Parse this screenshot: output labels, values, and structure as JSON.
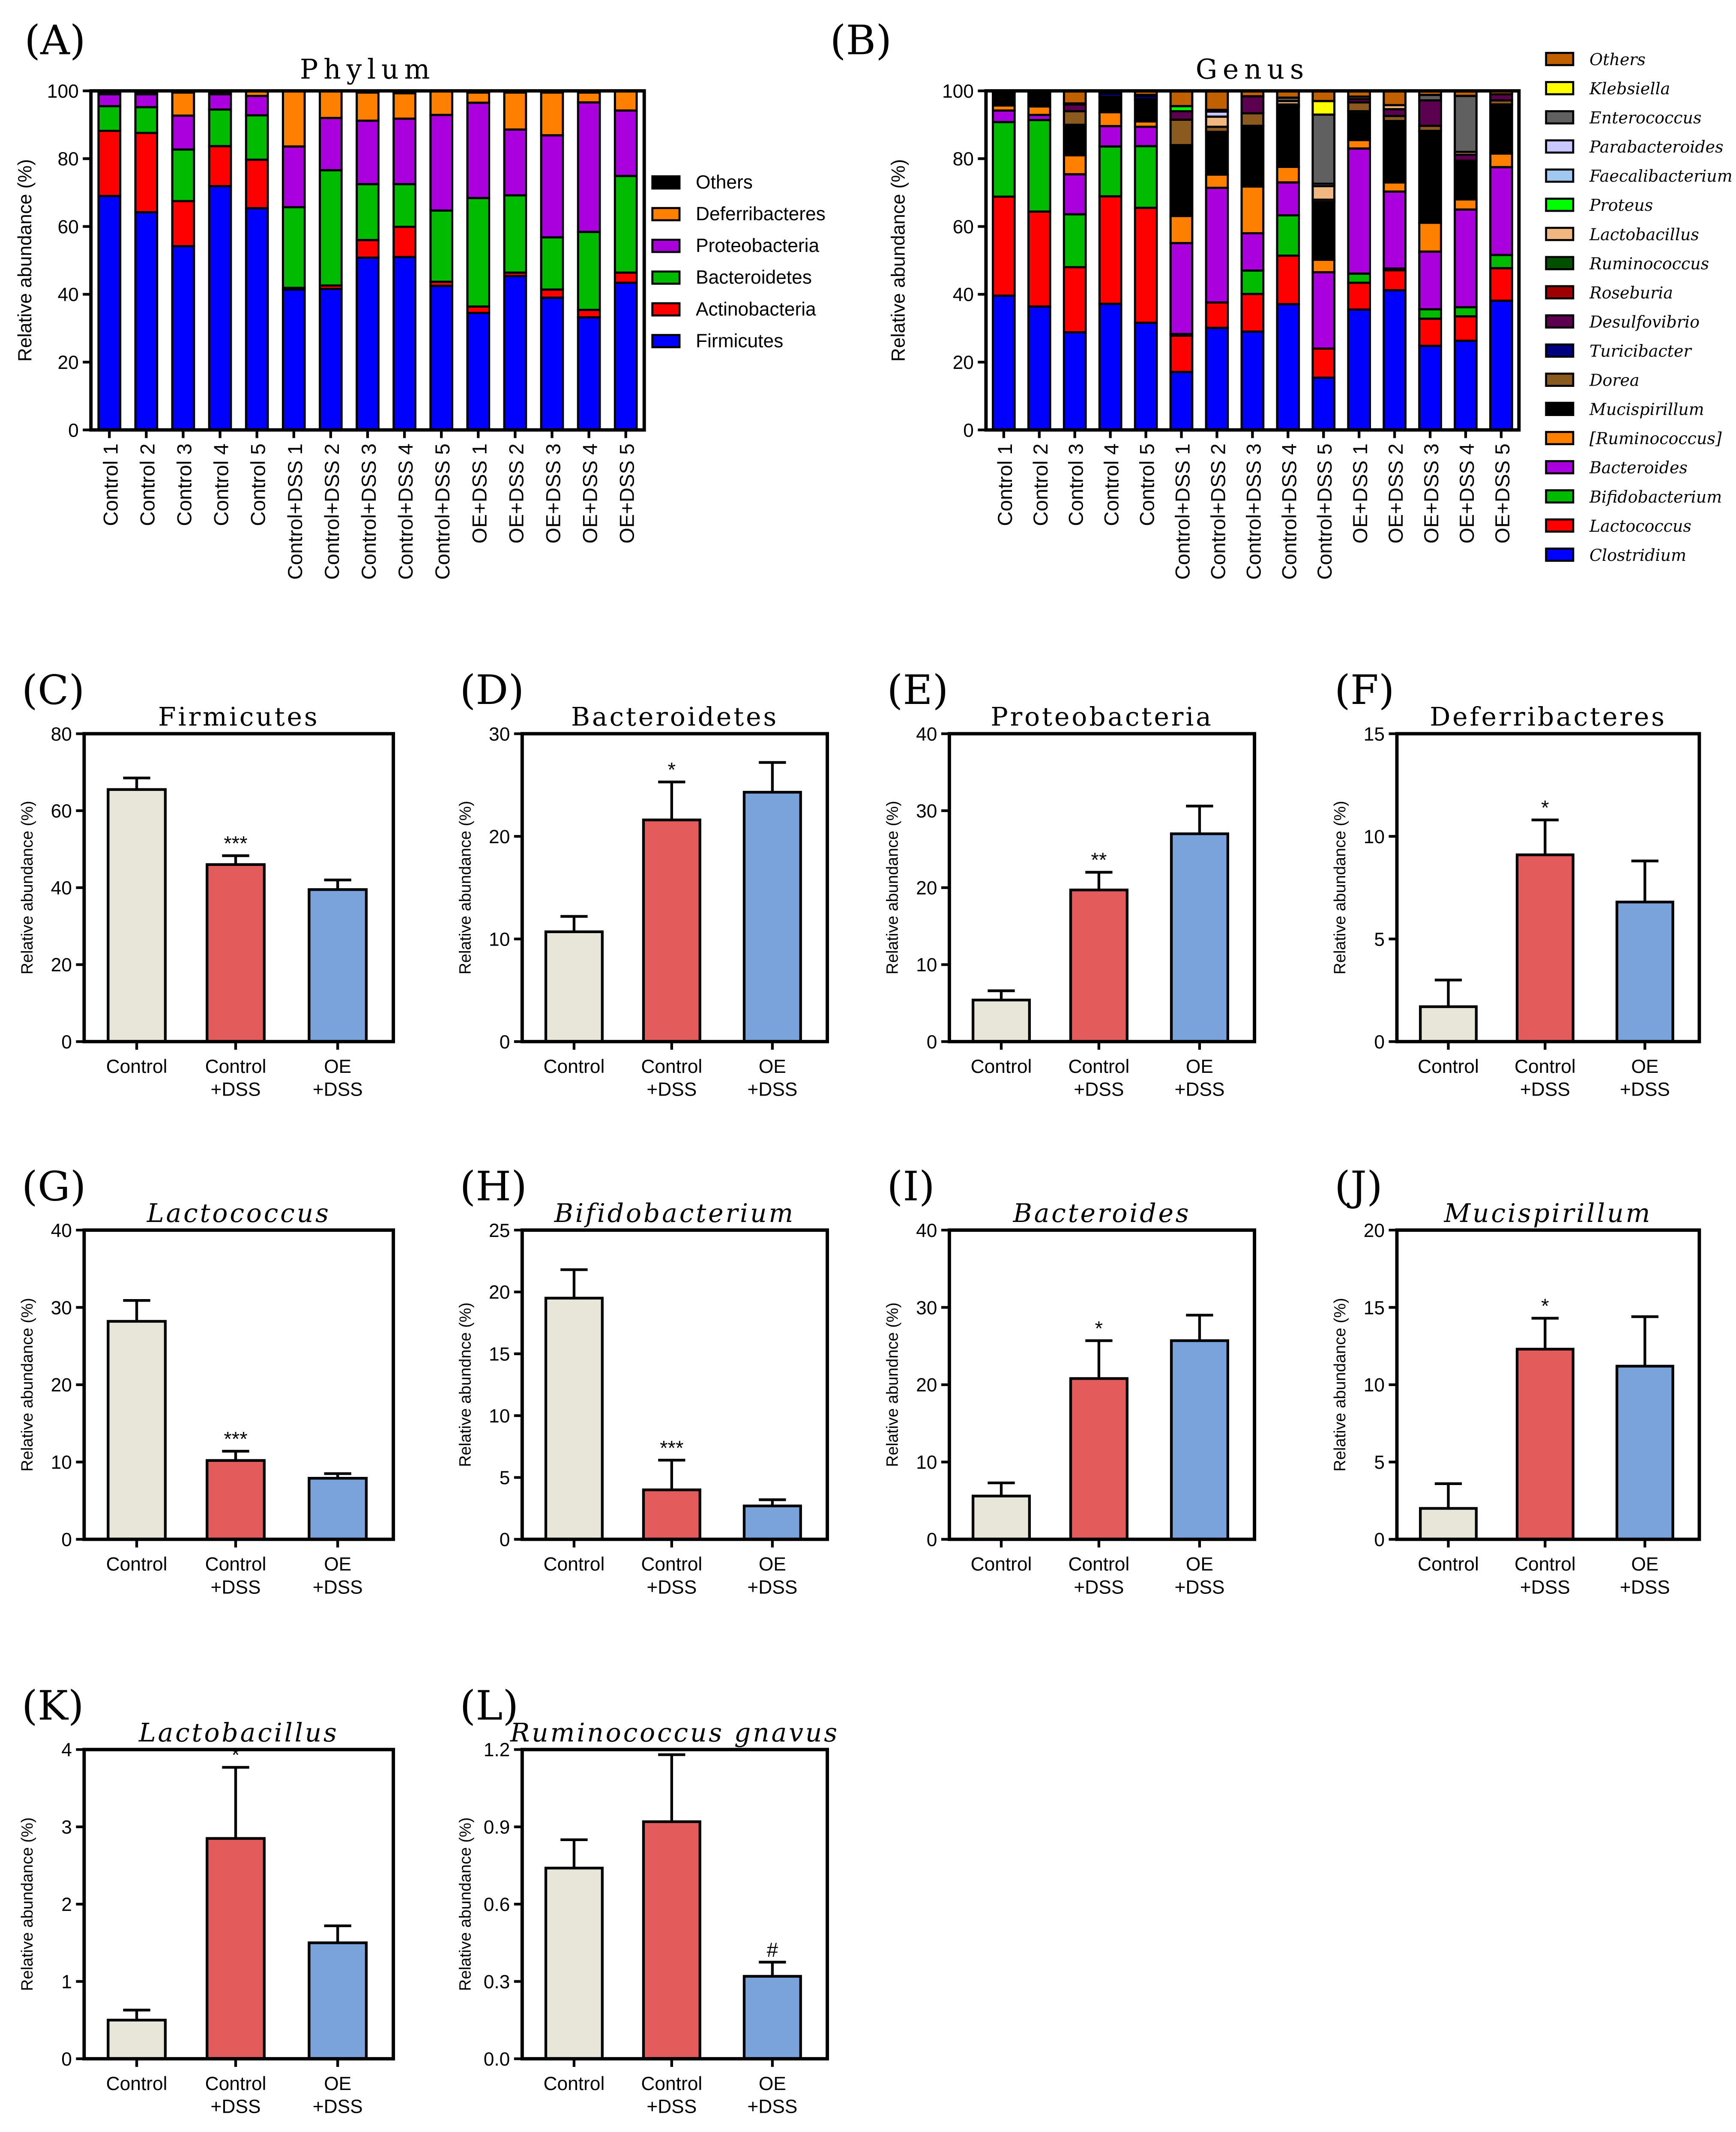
{
  "colors": {
    "control": "#e8e6d8",
    "control_dss": "#e35b5b",
    "oe_dss": "#7aa3dc"
  },
  "chart_data": [
    {
      "panel": "(A)",
      "type": "bar",
      "stacked": true,
      "title": "Phylum",
      "ylabel": "Relative abundance (%)",
      "ylim": [
        0,
        100
      ],
      "yticks": [
        0,
        20,
        40,
        60,
        80,
        100
      ],
      "categories": [
        "Control 1",
        "Control 2",
        "Control 3",
        "Control 4",
        "Control 5",
        "Control+DSS 1",
        "Control+DSS 2",
        "Control+DSS 3",
        "Control+DSS 4",
        "Control+DSS 5",
        "OE+DSS 1",
        "OE+DSS 2",
        "OE+DSS 3",
        "OE+DSS 4",
        "OE+DSS 5"
      ],
      "legend_position": "right",
      "series": [
        {
          "name": "Firmicutes",
          "color": "#0000ff",
          "values": [
            69,
            64.2,
            54.2,
            71.9,
            65.4,
            41.4,
            41.6,
            50.8,
            51,
            42.5,
            34.5,
            45.4,
            39,
            33.2,
            43.4
          ]
        },
        {
          "name": "Actinobacteria",
          "color": "#ff0000",
          "values": [
            19.2,
            23.4,
            13.3,
            11.8,
            14.3,
            0.5,
            1,
            5.2,
            8.9,
            1.2,
            1.9,
            1,
            2.4,
            2.2,
            3
          ]
        },
        {
          "name": "Bacteroidetes",
          "color": "#00bb00",
          "values": [
            7.3,
            7.6,
            15.2,
            10.8,
            13.1,
            23.8,
            34,
            16.5,
            12.6,
            21,
            32,
            22.8,
            15.4,
            23,
            28.5
          ]
        },
        {
          "name": "Proteobacteria",
          "color": "#aa00dd",
          "values": [
            3.5,
            3.8,
            10,
            4.5,
            5.7,
            17.9,
            15.4,
            18.7,
            19.3,
            28.2,
            28.1,
            19.4,
            30.1,
            38.2,
            19.3
          ]
        },
        {
          "name": "Deferribacteres",
          "color": "#ff8000",
          "values": [
            0,
            0,
            6.8,
            0,
            1.5,
            16.4,
            8,
            8.3,
            7.5,
            7.1,
            3,
            10.9,
            12.6,
            2.9,
            5.8
          ]
        },
        {
          "name": "Others",
          "color": "#000000",
          "values": [
            1,
            1,
            0.5,
            1,
            0,
            0,
            0,
            0.5,
            0.7,
            0,
            0.5,
            0.5,
            0.5,
            0.5,
            0
          ]
        }
      ]
    },
    {
      "panel": "(B)",
      "type": "bar",
      "stacked": true,
      "title": "Genus",
      "ylabel": "Relative abundance (%)",
      "ylim": [
        0,
        100
      ],
      "yticks": [
        0,
        20,
        40,
        60,
        80,
        100
      ],
      "categories": [
        "Control 1",
        "Control 2",
        "Control 3",
        "Control 4",
        "Control 5",
        "Control+DSS 1",
        "Control+DSS 2",
        "Control+DSS 3",
        "Control+DSS 4",
        "Control+DSS 5",
        "OE+DSS 1",
        "OE+DSS 2",
        "OE+DSS 3",
        "OE+DSS 4",
        "OE+DSS 5"
      ],
      "legend_position": "right",
      "series": [
        {
          "name": "Clostridium",
          "color": "#0000ff",
          "values": [
            39.6,
            36.4,
            28.8,
            37.2,
            31.6,
            17.1,
            30.1,
            29,
            37.1,
            15.4,
            35.5,
            41.2,
            24.8,
            26.3,
            38.1
          ]
        },
        {
          "name": "Lactococcus",
          "color": "#ff0000",
          "values": [
            29.2,
            28,
            19.2,
            31.7,
            33.9,
            10.7,
            7.5,
            11.1,
            14.3,
            8.6,
            7.9,
            5.9,
            8,
            7.2,
            9.6
          ]
        },
        {
          "name": "Bifidobacterium",
          "color": "#00bb00",
          "values": [
            22,
            27,
            15.6,
            14.7,
            18.2,
            0.5,
            0,
            6.9,
            11.9,
            0,
            2.7,
            0.5,
            2.8,
            2.7,
            3.9
          ]
        },
        {
          "name": "Bacteroides",
          "color": "#aa00dd",
          "values": [
            3.4,
            1.5,
            11.8,
            6,
            5.7,
            26.8,
            33.8,
            11,
            9.7,
            22.5,
            36.9,
            22.7,
            17,
            28.8,
            25.9
          ]
        },
        {
          "name": "[Ruminococcus]",
          "color": "#ff8000",
          "values": [
            1.5,
            2.5,
            5.6,
            4.1,
            1.6,
            8,
            3.9,
            13.8,
            4.6,
            3.7,
            2.5,
            2.7,
            8.5,
            3,
            4
          ]
        },
        {
          "name": "Mucispirillum",
          "color": "#000000",
          "values": [
            3.8,
            4.1,
            9,
            4.5,
            6.5,
            20.9,
            12.6,
            17.9,
            17.7,
            17,
            8.5,
            18.1,
            27.1,
            11.4,
            14.5
          ]
        },
        {
          "name": "Dorea",
          "color": "#8b5a1e",
          "values": [
            0,
            0,
            4,
            0,
            0,
            7.5,
            1.5,
            3.7,
            0.4,
            0.7,
            2.6,
            1.5,
            1.5,
            0,
            1.2
          ]
        },
        {
          "name": "Turicibacter",
          "color": "#000080",
          "values": [
            0,
            0,
            0,
            1,
            1,
            0,
            0,
            0,
            0,
            0,
            0,
            0,
            0,
            0,
            0
          ]
        },
        {
          "name": "Desulfovibrio",
          "color": "#5c0050",
          "values": [
            0,
            0,
            2,
            0,
            0,
            2.5,
            0,
            5,
            0,
            0,
            1,
            2,
            7.5,
            1.8,
            1.8
          ]
        },
        {
          "name": "Roseburia",
          "color": "#a00000",
          "values": [
            0,
            0,
            0,
            0,
            0.3,
            0,
            0,
            0,
            0,
            0,
            0,
            0,
            0,
            0,
            0
          ]
        },
        {
          "name": "Ruminococcus",
          "color": "#005000",
          "values": [
            0,
            0,
            0.3,
            0,
            0,
            0,
            0,
            0,
            0.3,
            0,
            0,
            0,
            0,
            0,
            0
          ]
        },
        {
          "name": "Lactobacillus",
          "color": "#f0b880",
          "values": [
            0,
            0,
            0,
            0,
            0,
            0,
            3,
            0,
            1,
            4,
            0.7,
            1.2,
            0,
            0.8,
            0
          ]
        },
        {
          "name": "Proteus",
          "color": "#00ff00",
          "values": [
            0,
            0,
            0,
            0,
            0,
            1.5,
            0,
            0,
            0,
            0,
            0,
            0,
            0,
            0,
            0
          ]
        },
        {
          "name": "Faecalibacterium",
          "color": "#a0c8f0",
          "values": [
            0,
            0,
            0,
            0,
            0,
            0,
            0,
            0,
            0,
            0,
            0,
            0,
            0,
            0,
            0
          ]
        },
        {
          "name": "Parabacteroides",
          "color": "#c8c8ff",
          "values": [
            0,
            0,
            0,
            0,
            0,
            0,
            1.5,
            0,
            0,
            0.7,
            0,
            0,
            0,
            0,
            0
          ]
        },
        {
          "name": "Enterococcus",
          "color": "#606060",
          "values": [
            0,
            0,
            0,
            0,
            0,
            0,
            0.5,
            0,
            1,
            20.4,
            0,
            0,
            1.6,
            16.5,
            0
          ]
        },
        {
          "name": "Klebsiella",
          "color": "#ffff00",
          "values": [
            0,
            0,
            0,
            0,
            0,
            0,
            0,
            0,
            0,
            4,
            0,
            0,
            0,
            0,
            0
          ]
        },
        {
          "name": "Others",
          "color": "#c06000",
          "values": [
            0.5,
            0.5,
            3.7,
            0.8,
            1.2,
            4.5,
            5.6,
            1.6,
            2,
            3,
            1.7,
            4.2,
            1.2,
            1.5,
            1
          ]
        }
      ]
    },
    {
      "panel": "(C)",
      "type": "bar",
      "title": "Firmicutes",
      "italic": false,
      "ylabel": "Relative abundance (%)",
      "ylim": [
        0,
        80
      ],
      "yticks": [
        0,
        20,
        40,
        60,
        80
      ],
      "categories": [
        [
          "Control"
        ],
        [
          "Control",
          "+DSS"
        ],
        [
          "OE",
          "+DSS"
        ]
      ],
      "values": [
        65.5,
        46,
        39.5
      ],
      "errors": [
        3,
        2.3,
        2.5
      ],
      "annotations": [
        "",
        "***",
        ""
      ]
    },
    {
      "panel": "(D)",
      "type": "bar",
      "title": "Bacteroidetes",
      "italic": false,
      "ylabel": "Relative abundance (%)",
      "ylim": [
        0,
        30
      ],
      "yticks": [
        0,
        10,
        20,
        30
      ],
      "categories": [
        [
          "Control"
        ],
        [
          "Control",
          "+DSS"
        ],
        [
          "OE",
          "+DSS"
        ]
      ],
      "values": [
        10.7,
        21.6,
        24.3
      ],
      "errors": [
        1.5,
        3.7,
        2.9
      ],
      "annotations": [
        "",
        "*",
        ""
      ]
    },
    {
      "panel": "(E)",
      "type": "bar",
      "title": "Proteobacteria",
      "italic": false,
      "ylabel": "Relative abundance (%)",
      "ylim": [
        0,
        40
      ],
      "yticks": [
        0,
        10,
        20,
        30,
        40
      ],
      "categories": [
        [
          "Control"
        ],
        [
          "Control",
          "+DSS"
        ],
        [
          "OE",
          "+DSS"
        ]
      ],
      "values": [
        5.4,
        19.7,
        27
      ],
      "errors": [
        1.2,
        2.3,
        3.6
      ],
      "annotations": [
        "",
        "**",
        ""
      ]
    },
    {
      "panel": "(F)",
      "type": "bar",
      "title": "Deferribacteres",
      "italic": false,
      "ylabel": "Relative abundance (%)",
      "ylim": [
        0,
        15
      ],
      "yticks": [
        0,
        5,
        10,
        15
      ],
      "categories": [
        [
          "Control"
        ],
        [
          "Control",
          "+DSS"
        ],
        [
          "OE",
          "+DSS"
        ]
      ],
      "values": [
        1.7,
        9.1,
        6.8
      ],
      "errors": [
        1.3,
        1.7,
        2
      ],
      "annotations": [
        "",
        "*",
        ""
      ]
    },
    {
      "panel": "(G)",
      "type": "bar",
      "title": "Lactococcus",
      "italic": true,
      "ylabel": "Relative abundance (%)",
      "ylim": [
        0,
        40
      ],
      "yticks": [
        0,
        10,
        20,
        30,
        40
      ],
      "categories": [
        [
          "Control"
        ],
        [
          "Control",
          "+DSS"
        ],
        [
          "OE",
          "+DSS"
        ]
      ],
      "values": [
        28.2,
        10.2,
        7.9
      ],
      "errors": [
        2.7,
        1.2,
        0.6
      ],
      "annotations": [
        "",
        "***",
        ""
      ]
    },
    {
      "panel": "(H)",
      "type": "bar",
      "title": "Bifidobacterium",
      "italic": true,
      "ylabel": "Relative abundnce  (%)",
      "ylim": [
        0,
        25
      ],
      "yticks": [
        0,
        5,
        10,
        15,
        20,
        25
      ],
      "categories": [
        [
          "Control"
        ],
        [
          "Control",
          "+DSS"
        ],
        [
          "OE",
          "+DSS"
        ]
      ],
      "values": [
        19.5,
        4,
        2.7
      ],
      "errors": [
        2.3,
        2.4,
        0.5
      ],
      "annotations": [
        "",
        "***",
        ""
      ]
    },
    {
      "panel": "(I)",
      "type": "bar",
      "title": "Bacteroides",
      "italic": true,
      "ylabel": "Relative abundnce  (%)",
      "ylim": [
        0,
        40
      ],
      "yticks": [
        0,
        10,
        20,
        30,
        40
      ],
      "categories": [
        [
          "Control"
        ],
        [
          "Control",
          "+DSS"
        ],
        [
          "OE",
          "+DSS"
        ]
      ],
      "values": [
        5.6,
        20.8,
        25.7
      ],
      "errors": [
        1.7,
        4.9,
        3.3
      ],
      "annotations": [
        "",
        "*",
        ""
      ]
    },
    {
      "panel": "(J)",
      "type": "bar",
      "title": "Mucispirillum",
      "italic": true,
      "ylabel": "Relative abundance (%)",
      "ylim": [
        0,
        20
      ],
      "yticks": [
        0,
        5,
        10,
        15,
        20
      ],
      "categories": [
        [
          "Control"
        ],
        [
          "Control",
          "+DSS"
        ],
        [
          "OE",
          "+DSS"
        ]
      ],
      "values": [
        2,
        12.3,
        11.2
      ],
      "errors": [
        1.6,
        2,
        3.2
      ],
      "annotations": [
        "",
        "*",
        ""
      ]
    },
    {
      "panel": "(K)",
      "type": "bar",
      "title": "Lactobacillus",
      "italic": true,
      "ylabel": "Relative abundance (%)",
      "ylim": [
        0,
        4
      ],
      "yticks": [
        0,
        1,
        2,
        3,
        4
      ],
      "categories": [
        [
          "Control"
        ],
        [
          "Control",
          "+DSS"
        ],
        [
          "OE",
          "+DSS"
        ]
      ],
      "values": [
        0.5,
        2.85,
        1.5
      ],
      "errors": [
        0.13,
        0.92,
        0.22
      ],
      "annotations": [
        "",
        "*",
        ""
      ]
    },
    {
      "panel": "(L)",
      "type": "bar",
      "title": "Ruminococcus gnavus",
      "italic": true,
      "ylabel": "Relative abundance (%)",
      "ylim": [
        0,
        1.2
      ],
      "yticks": [
        "0.0",
        "0.3",
        "0.6",
        "0.9",
        "1.2"
      ],
      "categories": [
        [
          "Control"
        ],
        [
          "Control",
          "+DSS"
        ],
        [
          "OE",
          "+DSS"
        ]
      ],
      "values": [
        0.74,
        0.92,
        0.32
      ],
      "errors": [
        0.11,
        0.26,
        0.055
      ],
      "annotations": [
        "",
        "",
        "#"
      ]
    }
  ]
}
